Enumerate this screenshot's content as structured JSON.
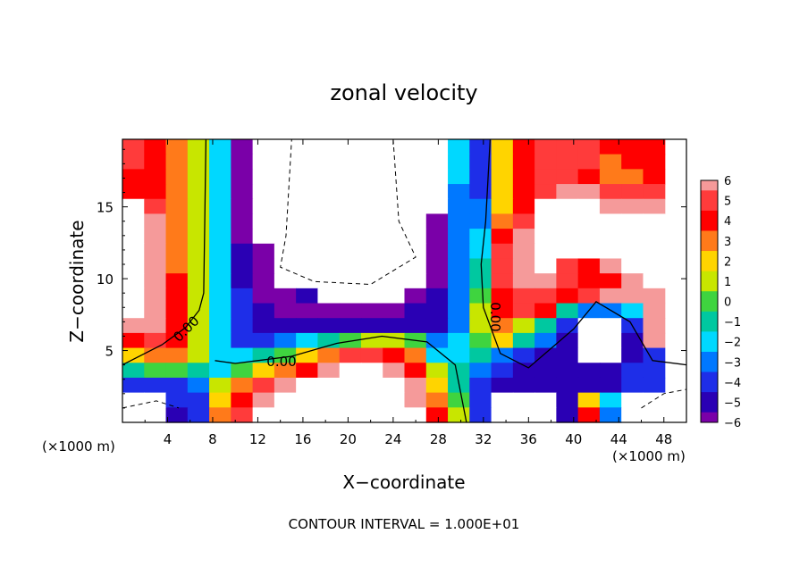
{
  "chart_data": {
    "type": "heatmap",
    "title": "zonal velocity",
    "xlabel": "X−coordinate",
    "ylabel": "Z−coordinate",
    "x_unit_left": "(×1000 m)",
    "x_unit_right": "(×1000 m)",
    "footer": "CONTOUR INTERVAL = 1.000E+01",
    "xlim": [
      0,
      50
    ],
    "ylim": [
      0,
      19.7
    ],
    "x_ticks": [
      4,
      8,
      12,
      16,
      20,
      24,
      28,
      32,
      36,
      40,
      44,
      48
    ],
    "y_ticks": [
      5,
      10,
      15
    ],
    "contour_labels": [
      "0.00",
      "0.00",
      "0.00"
    ],
    "colorbar": {
      "ticks": [
        "6",
        "5",
        "4",
        "3",
        "2",
        "1",
        "0",
        "−1",
        "−2",
        "−3",
        "−4",
        "−5",
        "−6"
      ],
      "range": [
        -6,
        6
      ]
    },
    "bands_x": [
      0,
      2,
      4,
      6,
      8,
      10,
      12,
      14,
      16,
      18,
      20,
      22,
      24,
      26,
      28,
      30,
      32,
      34,
      36,
      38,
      40,
      42,
      44,
      46,
      48,
      50
    ],
    "bands_z": [
      0.5,
      1.5,
      2.5,
      3.5,
      4.5,
      5.5,
      6.5,
      7.5,
      8.5,
      9.5,
      10.5,
      11.5,
      12.5,
      13.5,
      14.5,
      15.5,
      16.5,
      17.5,
      18.5,
      19.5
    ],
    "values_rows_top_to_bottom": [
      [
        5,
        4,
        3,
        1,
        -2,
        -7,
        8,
        8,
        8,
        8,
        8,
        8,
        8,
        8,
        8,
        -2,
        -4,
        2,
        4,
        5,
        5,
        5,
        4,
        4,
        4
      ],
      [
        5,
        4,
        3,
        1,
        -2,
        -7,
        8,
        8,
        8,
        8,
        8,
        8,
        8,
        8,
        8,
        -2,
        -4,
        2,
        4,
        5,
        5,
        5,
        3,
        4,
        4
      ],
      [
        4,
        4,
        3,
        1,
        -2,
        -6,
        8,
        8,
        8,
        8,
        8,
        8,
        8,
        8,
        8,
        -2,
        -4,
        2,
        4,
        5,
        5,
        4,
        3,
        3,
        4
      ],
      [
        4,
        4,
        3,
        1,
        -2,
        -6,
        8,
        8,
        8,
        8,
        8,
        8,
        8,
        8,
        8,
        -3,
        -4,
        2,
        4,
        5,
        6,
        6,
        5,
        5,
        5
      ],
      [
        8,
        5,
        3,
        1,
        -2,
        -6,
        8,
        8,
        8,
        8,
        8,
        8,
        8,
        8,
        8,
        -3,
        -3,
        2,
        4,
        8,
        8,
        8,
        6,
        6,
        6
      ],
      [
        8,
        6,
        3,
        1,
        -2,
        -6,
        8,
        8,
        8,
        8,
        8,
        8,
        8,
        8,
        -6,
        -3,
        -3,
        3,
        5,
        8,
        8,
        8,
        8,
        8,
        8
      ],
      [
        8,
        6,
        3,
        1,
        -2,
        -6,
        8,
        8,
        8,
        8,
        8,
        8,
        8,
        8,
        -6,
        -3,
        -2,
        4,
        6,
        8,
        8,
        8,
        8,
        8,
        8
      ],
      [
        8,
        6,
        3,
        1,
        -2,
        -5,
        -6,
        8,
        8,
        8,
        8,
        8,
        8,
        8,
        -6,
        -3,
        -2,
        5,
        6,
        8,
        8,
        8,
        8,
        8,
        8
      ],
      [
        8,
        6,
        3,
        1,
        -2,
        -5,
        -6,
        8,
        8,
        8,
        8,
        8,
        8,
        8,
        -6,
        -3,
        -1,
        5,
        6,
        8,
        5,
        4,
        6,
        8,
        8
      ],
      [
        8,
        6,
        4,
        1,
        -2,
        -5,
        -6,
        8,
        8,
        8,
        8,
        8,
        8,
        8,
        -6,
        -3,
        -1,
        5,
        6,
        6,
        5,
        4,
        4,
        6,
        8
      ],
      [
        8,
        6,
        4,
        1,
        -2,
        -4,
        -6,
        -6,
        -5,
        8,
        8,
        8,
        8,
        -6,
        -5,
        -3,
        0,
        4,
        5,
        5,
        4,
        5,
        6,
        6,
        6
      ],
      [
        8,
        6,
        4,
        1,
        -2,
        -4,
        -5,
        -6,
        -6,
        -6,
        -6,
        -6,
        -6,
        -5,
        -5,
        -3,
        1,
        4,
        5,
        4,
        -1,
        -3,
        -3,
        -2,
        6
      ],
      [
        6,
        6,
        4,
        1,
        -2,
        -4,
        -5,
        -5,
        -5,
        -5,
        -5,
        -5,
        -5,
        -5,
        -5,
        -3,
        1,
        3,
        1,
        -1,
        -4,
        8,
        8,
        -4,
        6
      ],
      [
        4,
        5,
        4,
        1,
        -2,
        -4,
        -4,
        -3,
        -2,
        -1,
        0,
        1,
        1,
        0,
        -3,
        -2,
        0,
        2,
        -1,
        -3,
        -5,
        8,
        8,
        -5,
        6
      ],
      [
        2,
        3,
        3,
        1,
        -2,
        -2,
        -1,
        0,
        2,
        3,
        5,
        5,
        4,
        3,
        -2,
        -2,
        -1,
        -3,
        -4,
        -5,
        -5,
        8,
        8,
        -5,
        -4
      ],
      [
        -1,
        0,
        0,
        -1,
        -2,
        0,
        2,
        3,
        4,
        6,
        8,
        8,
        6,
        4,
        1,
        -1,
        -3,
        -4,
        -5,
        -5,
        -5,
        -5,
        -5,
        -4,
        -4
      ],
      [
        -4,
        -4,
        -4,
        -3,
        1,
        3,
        5,
        6,
        8,
        8,
        8,
        8,
        8,
        6,
        2,
        -1,
        -4,
        -5,
        -5,
        -5,
        -5,
        -5,
        -5,
        -4,
        -4
      ],
      [
        8,
        8,
        -4,
        -4,
        2,
        4,
        6,
        8,
        8,
        8,
        8,
        8,
        8,
        6,
        3,
        0,
        -4,
        8,
        8,
        8,
        -5,
        2,
        -2,
        8,
        8
      ],
      [
        8,
        8,
        -5,
        -4,
        3,
        5,
        8,
        8,
        8,
        8,
        8,
        8,
        8,
        8,
        4,
        1,
        -4,
        8,
        8,
        8,
        -5,
        4,
        -3,
        8,
        8
      ]
    ]
  }
}
